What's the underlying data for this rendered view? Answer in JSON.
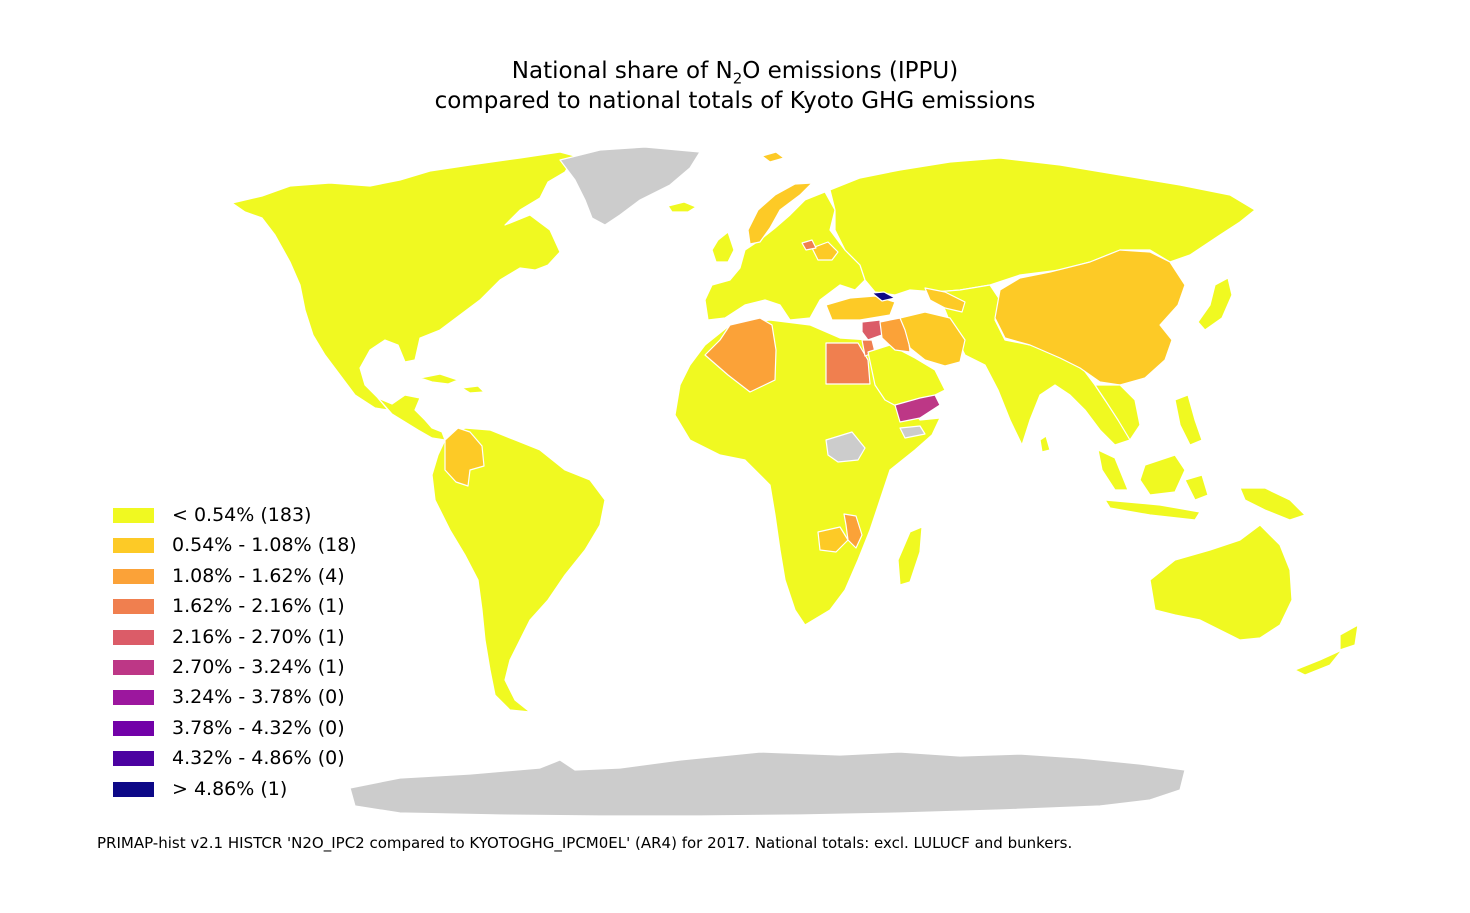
{
  "title": {
    "line1_prefix": "National share of N",
    "line1_sub": "2",
    "line1_suffix": "O emissions (IPPU)",
    "line2": "compared to national totals of Kyoto GHG emissions"
  },
  "colors": {
    "no_data": "#cccccc",
    "border": "#ffffff",
    "ocean": "#ffffff"
  },
  "legend": [
    {
      "label": "< 0.54% (183)",
      "color": "#f0f921"
    },
    {
      "label": "0.54% - 1.08% (18)",
      "color": "#fdca26"
    },
    {
      "label": "1.08% - 1.62% (4)",
      "color": "#fba238"
    },
    {
      "label": "1.62% - 2.16% (1)",
      "color": "#f07f4f"
    },
    {
      "label": "2.16% - 2.70% (1)",
      "color": "#db5c68"
    },
    {
      "label": "2.70% - 3.24% (1)",
      "color": "#bd3786"
    },
    {
      "label": "3.24% - 3.78% (0)",
      "color": "#9c179e"
    },
    {
      "label": "3.78% - 4.32% (0)",
      "color": "#7201a8"
    },
    {
      "label": "4.32% - 4.86% (0)",
      "color": "#4c02a1"
    },
    {
      "label": "> 4.86% (1)",
      "color": "#0d0887"
    }
  ],
  "regions": [
    {
      "name": "north-america",
      "bin": 0
    },
    {
      "name": "central-america",
      "bin": 0
    },
    {
      "name": "caribbean",
      "bin": 0
    },
    {
      "name": "south-america",
      "bin": 0
    },
    {
      "name": "colombia",
      "bin": 1
    },
    {
      "name": "greenland",
      "bin": -1
    },
    {
      "name": "iceland",
      "bin": 0
    },
    {
      "name": "svalbard",
      "bin": 1
    },
    {
      "name": "norway",
      "bin": 1
    },
    {
      "name": "europe",
      "bin": 0
    },
    {
      "name": "belarus",
      "bin": 1
    },
    {
      "name": "lithuania",
      "bin": 3
    },
    {
      "name": "russia",
      "bin": 0
    },
    {
      "name": "turkey",
      "bin": 1
    },
    {
      "name": "georgia",
      "bin": 9
    },
    {
      "name": "syria",
      "bin": 4
    },
    {
      "name": "jordan",
      "bin": 3
    },
    {
      "name": "iraq",
      "bin": 2
    },
    {
      "name": "iran",
      "bin": 1
    },
    {
      "name": "uzbekistan",
      "bin": 1
    },
    {
      "name": "saudi-arabia",
      "bin": 0
    },
    {
      "name": "yemen",
      "bin": 5
    },
    {
      "name": "somaliland",
      "bin": -1
    },
    {
      "name": "africa",
      "bin": 0
    },
    {
      "name": "algeria",
      "bin": 2
    },
    {
      "name": "egypt",
      "bin": 3
    },
    {
      "name": "south-sudan",
      "bin": -1
    },
    {
      "name": "zambia",
      "bin": 1
    },
    {
      "name": "malawi",
      "bin": 2
    },
    {
      "name": "madagascar",
      "bin": 0
    },
    {
      "name": "asia",
      "bin": 0
    },
    {
      "name": "china",
      "bin": 1
    },
    {
      "name": "japan",
      "bin": 0
    },
    {
      "name": "southeast-asia",
      "bin": 0
    },
    {
      "name": "philippines",
      "bin": 0
    },
    {
      "name": "indonesia",
      "bin": 0
    },
    {
      "name": "new-guinea",
      "bin": 0
    },
    {
      "name": "australia",
      "bin": 0
    },
    {
      "name": "new-zealand",
      "bin": 0
    },
    {
      "name": "sri-lanka",
      "bin": 0
    },
    {
      "name": "uk-ireland",
      "bin": 0
    },
    {
      "name": "antarctica",
      "bin": -1
    }
  ],
  "footnote": "PRIMAP-hist v2.1 HISTCR 'N2O_IPC2 compared to KYOTOGHG_IPCM0EL' (AR4) for 2017. National totals: excl. LULUCF and bunkers."
}
